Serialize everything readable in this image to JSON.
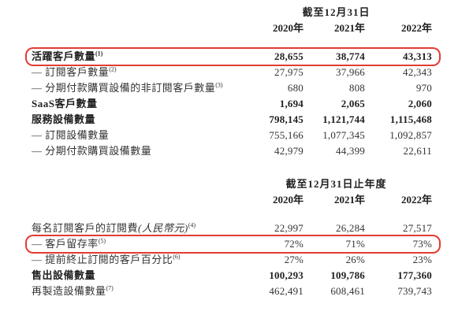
{
  "page": {
    "background": "#ffffff",
    "highlight_color": "#e23b32"
  },
  "tables": [
    {
      "period_header": "截至12月31日",
      "year_columns": [
        "2020年",
        "2021年",
        "2022年"
      ],
      "rows": [
        {
          "label": "活躍客戶數量",
          "sup": "(1)",
          "bold": true,
          "highlighted": true,
          "values": [
            "28,655",
            "38,774",
            "43,313"
          ]
        },
        {
          "label": "— 訂閱客戶數量",
          "sup": "(2)",
          "bold": false,
          "highlighted": false,
          "values": [
            "27,975",
            "37,966",
            "42,343"
          ]
        },
        {
          "label": "— 分期付款購買設備的非訂閱客戶數量",
          "sup": "(3)",
          "bold": false,
          "highlighted": false,
          "values": [
            "680",
            "808",
            "970"
          ]
        },
        {
          "label": "SaaS客戶數量",
          "sup": "",
          "bold": true,
          "highlighted": false,
          "values": [
            "1,694",
            "2,065",
            "2,060"
          ]
        },
        {
          "label": "服務設備數量",
          "sup": "",
          "bold": true,
          "highlighted": false,
          "values": [
            "798,145",
            "1,121,744",
            "1,115,468"
          ]
        },
        {
          "label": "— 訂閱設備數量",
          "sup": "",
          "bold": false,
          "highlighted": false,
          "values": [
            "755,166",
            "1,077,345",
            "1,092,857"
          ]
        },
        {
          "label": "— 分期付款購買設備數量",
          "sup": "",
          "bold": false,
          "highlighted": false,
          "values": [
            "42,979",
            "44,399",
            "22,611"
          ]
        }
      ]
    },
    {
      "period_header": "截至12月31日止年度",
      "year_columns": [
        "2020年",
        "2021年",
        "2022年"
      ],
      "rows": [
        {
          "label": "每名訂閱客戶的訂閱費",
          "label_italic": "(人民幣元)",
          "sup": "(4)",
          "bold": false,
          "highlighted": false,
          "values": [
            "22,997",
            "26,284",
            "27,517"
          ]
        },
        {
          "label": "— 客戶留存率",
          "sup": "(5)",
          "bold": false,
          "highlighted": true,
          "values": [
            "72%",
            "71%",
            "73%"
          ]
        },
        {
          "label": "— 提前終止訂閱的客戶百分比",
          "sup": "(6)",
          "bold": false,
          "highlighted": false,
          "values": [
            "27%",
            "26%",
            "23%"
          ]
        },
        {
          "label": "售出設備數量",
          "sup": "",
          "bold": true,
          "highlighted": false,
          "values": [
            "100,293",
            "109,786",
            "177,360"
          ]
        },
        {
          "label": "再製造設備數量",
          "sup": "(7)",
          "bold": false,
          "highlighted": false,
          "values": [
            "462,491",
            "608,461",
            "739,743"
          ]
        }
      ]
    }
  ]
}
